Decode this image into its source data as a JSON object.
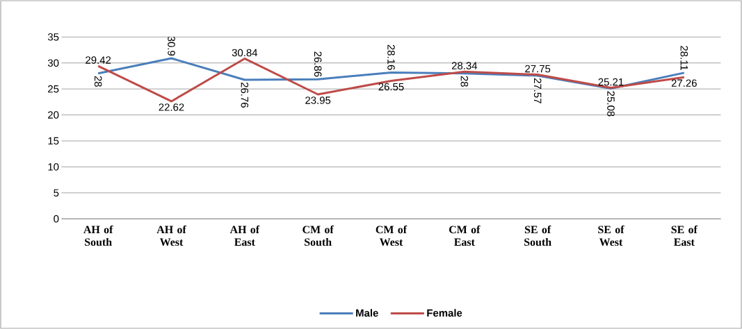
{
  "chart_data": {
    "type": "line",
    "categories": [
      "AH of South",
      "AH of West",
      "AH of East",
      "CM of South",
      "CM of West",
      "CM of East",
      "SE of South",
      "SE of West",
      "SE of East"
    ],
    "series": [
      {
        "name": "Male",
        "color": "#4a7ebb",
        "values": [
          28,
          30.9,
          26.76,
          26.86,
          28.16,
          28,
          27.57,
          25.08,
          28.11
        ]
      },
      {
        "name": "Female",
        "color": "#be4b48",
        "values": [
          29.42,
          22.62,
          30.84,
          23.95,
          26.55,
          28.34,
          27.75,
          25.21,
          27.26
        ]
      }
    ],
    "ylim": [
      0,
      35
    ],
    "yticks": [
      0,
      5,
      10,
      15,
      20,
      25,
      30,
      35
    ],
    "grid": "y",
    "legend": "bottom",
    "data_labels": true
  }
}
